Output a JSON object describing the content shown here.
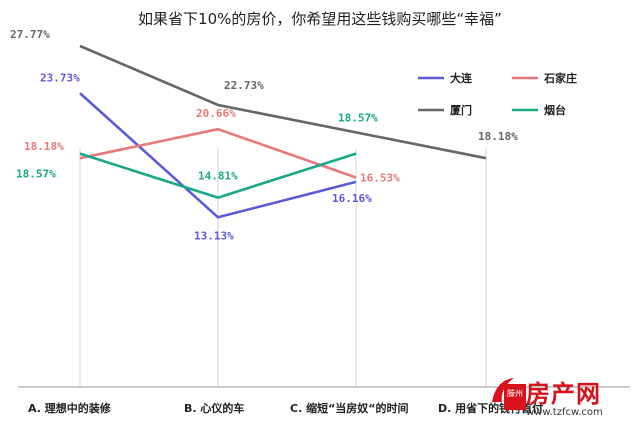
{
  "chart_data": {
    "type": "line",
    "title": "如果省下10%的房价，你希望用这些钱购买哪些“幸福”",
    "categories": [
      "A. 理想中的装修",
      "B. 心仪的车",
      "C. 缩短“当房奴“的时间",
      "D. 用省下的钱付首付"
    ],
    "series": [
      {
        "name": "大连",
        "color": "#5b5bd6",
        "values": [
          23.73,
          13.13,
          16.16,
          null
        ],
        "labels": [
          "23.73%",
          "13.13%",
          "16.16%",
          null
        ]
      },
      {
        "name": "石家庄",
        "color": "#e8797a",
        "values": [
          18.18,
          20.66,
          16.53,
          null
        ],
        "labels": [
          "18.18%",
          "20.66%",
          "16.53%",
          null
        ]
      },
      {
        "name": "厦门",
        "color": "#666666",
        "values": [
          27.77,
          22.73,
          null,
          18.18
        ],
        "labels": [
          "27.77%",
          "22.73%",
          null,
          "18.18%"
        ]
      },
      {
        "name": "烟台",
        "color": "#1aa985",
        "values": [
          18.57,
          14.81,
          18.57,
          null
        ],
        "labels": [
          "18.57%",
          "14.81%",
          "18.57%",
          null
        ]
      }
    ],
    "legend_position": "top-right",
    "grid": "vertical"
  },
  "watermark": {
    "brand": "房产网",
    "city": "滕州",
    "url": "www.tzfcw.com"
  }
}
